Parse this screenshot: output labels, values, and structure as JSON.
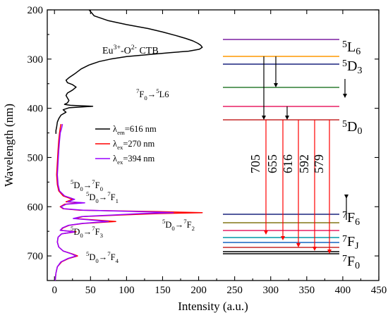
{
  "chart_data": {
    "type": "line",
    "orientation": "rotated: wavelength on vertical axis, intensity on horizontal axis",
    "xlabel": "Intensity (a.u.)",
    "ylabel": "Wavelength (nm)",
    "xlim": [
      -10,
      450
    ],
    "ylim": [
      750,
      200
    ],
    "x_ticks": [
      0,
      50,
      100,
      150,
      200,
      250,
      300,
      350,
      400,
      450
    ],
    "y_ticks": [
      200,
      300,
      400,
      500,
      600,
      700
    ],
    "grid": false,
    "legend_placement": "center-left",
    "series": [
      {
        "name_parts": [
          "λ",
          "em",
          "=616 nm"
        ],
        "color": "#000000",
        "points": [
          [
            48,
            200
          ],
          [
            55,
            212
          ],
          [
            75,
            222
          ],
          [
            100,
            230
          ],
          [
            130,
            238
          ],
          [
            150,
            245
          ],
          [
            168,
            252
          ],
          [
            182,
            258
          ],
          [
            192,
            263
          ],
          [
            199,
            268
          ],
          [
            203,
            272
          ],
          [
            205,
            276
          ],
          [
            201,
            280
          ],
          [
            186,
            284
          ],
          [
            160,
            287
          ],
          [
            130,
            291
          ],
          [
            100,
            295
          ],
          [
            78,
            300
          ],
          [
            62,
            305
          ],
          [
            48,
            312
          ],
          [
            37,
            320
          ],
          [
            28,
            330
          ],
          [
            20,
            338
          ],
          [
            16,
            343
          ],
          [
            18,
            348
          ],
          [
            25,
            352
          ],
          [
            30,
            357
          ],
          [
            25,
            363
          ],
          [
            18,
            369
          ],
          [
            16,
            374
          ],
          [
            18,
            379
          ],
          [
            20,
            384
          ],
          [
            18,
            389
          ],
          [
            14,
            392
          ],
          [
            22,
            394
          ],
          [
            53,
            396
          ],
          [
            20,
            399
          ],
          [
            12,
            403
          ],
          [
            16,
            408
          ],
          [
            9,
            414
          ],
          [
            6,
            421
          ],
          [
            4,
            428
          ],
          [
            3,
            438
          ],
          [
            2,
            445
          ],
          [
            2,
            452
          ]
        ]
      },
      {
        "name_parts": [
          "λ",
          "ex",
          "=270 nm"
        ],
        "color": "#ff0000",
        "points": [
          [
            9,
            432
          ],
          [
            8,
            440
          ],
          [
            7,
            450
          ],
          [
            6,
            465
          ],
          [
            5,
            485
          ],
          [
            4,
            510
          ],
          [
            3,
            535
          ],
          [
            4,
            555
          ],
          [
            6,
            568
          ],
          [
            12,
            578
          ],
          [
            25,
            585
          ],
          [
            16,
            590
          ],
          [
            38,
            592
          ],
          [
            14,
            595
          ],
          [
            8,
            600
          ],
          [
            12,
            604
          ],
          [
            35,
            607
          ],
          [
            145,
            610
          ],
          [
            205,
            612
          ],
          [
            145,
            614
          ],
          [
            90,
            617
          ],
          [
            40,
            620
          ],
          [
            28,
            624
          ],
          [
            85,
            630
          ],
          [
            40,
            634
          ],
          [
            20,
            638
          ],
          [
            12,
            643
          ],
          [
            8,
            648
          ],
          [
            30,
            651
          ],
          [
            10,
            655
          ],
          [
            5,
            662
          ],
          [
            4,
            672
          ],
          [
            6,
            682
          ],
          [
            12,
            690
          ],
          [
            25,
            696
          ],
          [
            32,
            700
          ],
          [
            20,
            705
          ],
          [
            10,
            712
          ],
          [
            4,
            722
          ],
          [
            2,
            735
          ],
          [
            1,
            750
          ]
        ]
      },
      {
        "name_parts": [
          "λ",
          "ex",
          "=394 nm"
        ],
        "color": "#9900ff",
        "points": [
          [
            11,
            432
          ],
          [
            10,
            440
          ],
          [
            8,
            450
          ],
          [
            7,
            465
          ],
          [
            6,
            485
          ],
          [
            5,
            510
          ],
          [
            4,
            535
          ],
          [
            5,
            555
          ],
          [
            7,
            568
          ],
          [
            14,
            578
          ],
          [
            28,
            585
          ],
          [
            18,
            590
          ],
          [
            42,
            592
          ],
          [
            16,
            595
          ],
          [
            9,
            600
          ],
          [
            13,
            604
          ],
          [
            40,
            607
          ],
          [
            120,
            610
          ],
          [
            165,
            612
          ],
          [
            120,
            614
          ],
          [
            80,
            617
          ],
          [
            38,
            620
          ],
          [
            26,
            624
          ],
          [
            75,
            630
          ],
          [
            38,
            634
          ],
          [
            19,
            638
          ],
          [
            11,
            643
          ],
          [
            8,
            648
          ],
          [
            28,
            651
          ],
          [
            10,
            655
          ],
          [
            5,
            662
          ],
          [
            4,
            672
          ],
          [
            6,
            682
          ],
          [
            12,
            690
          ],
          [
            24,
            696
          ],
          [
            30,
            700
          ],
          [
            19,
            705
          ],
          [
            9,
            712
          ],
          [
            4,
            722
          ],
          [
            2,
            735
          ],
          [
            1,
            750
          ]
        ]
      }
    ],
    "annotations": {
      "ctb": [
        "Eu",
        "3+",
        "-O",
        "2-",
        " CTB"
      ],
      "L6": [
        "7",
        "F",
        "0",
        "→",
        "5",
        "L",
        "6"
      ],
      "D0F0": [
        "5",
        "D",
        "0",
        "→",
        "7",
        "F",
        "0"
      ],
      "D0F1": [
        "5",
        "D",
        "0",
        "→",
        "7",
        "F",
        "1"
      ],
      "D0F2": [
        "5",
        "D",
        "0",
        "→",
        "7",
        "F",
        "2"
      ],
      "D0F3": [
        "5",
        "D",
        "0",
        "→",
        "7",
        "F",
        "3"
      ],
      "D0F4": [
        "5",
        "D",
        "0",
        "→",
        "7",
        "F",
        "4"
      ]
    },
    "energy_diagram": {
      "upper_levels": [
        {
          "color": "#7b1fa2"
        },
        {
          "color": "#ff9800"
        },
        {
          "color": "#1a237e"
        },
        {
          "color": "#2e7d32"
        },
        {
          "color": "#e91e63"
        },
        {
          "color": "#c62828"
        }
      ],
      "lower_levels": [
        {
          "color": "#1a237e"
        },
        {
          "color": "#827717"
        },
        {
          "color": "#e91e63"
        },
        {
          "color": "#0097a7"
        },
        {
          "color": "#1565c0"
        },
        {
          "color": "#c62828"
        },
        {
          "color": "#000000"
        }
      ],
      "level_labels": [
        {
          "sup": "5",
          "main": "L",
          "sub": "6"
        },
        {
          "sup": "5",
          "main": "D",
          "sub": "3"
        },
        {
          "sup": "5",
          "main": "D",
          "sub": "0"
        },
        {
          "sup": "7",
          "main": "F",
          "sub": "6"
        },
        {
          "sup": "7",
          "main": "F",
          "sub": "J"
        },
        {
          "sup": "7",
          "main": "F",
          "sub": "0"
        }
      ],
      "emission_labels": [
        "705",
        "655",
        "616",
        "592",
        "579"
      ]
    }
  }
}
